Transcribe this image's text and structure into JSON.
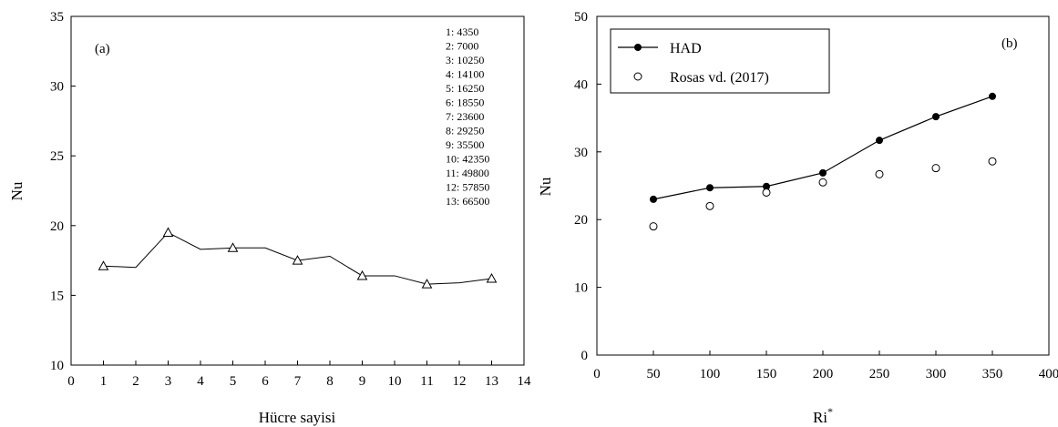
{
  "chart_data": [
    {
      "type": "line",
      "panel_label": "(a)",
      "xlabel": "Hücre sayisi",
      "ylabel": "Nu",
      "xlim": [
        0,
        14
      ],
      "ylim": [
        10,
        35
      ],
      "x_ticks": [
        0,
        1,
        2,
        3,
        4,
        5,
        6,
        7,
        8,
        9,
        10,
        11,
        12,
        13,
        14
      ],
      "y_ticks": [
        10,
        15,
        20,
        25,
        30,
        35
      ],
      "grid": false,
      "series": [
        {
          "x": [
            1,
            2,
            3,
            4,
            5,
            6,
            7,
            8,
            9,
            10,
            11,
            12,
            13
          ],
          "y": [
            17.1,
            17.0,
            19.5,
            18.3,
            18.4,
            18.4,
            17.5,
            17.8,
            16.4,
            16.4,
            15.8,
            15.9,
            16.2
          ],
          "marker": "triangle-open",
          "marker_on_x": [
            1,
            3,
            5,
            7,
            9,
            11,
            13
          ]
        }
      ],
      "annotations": [
        "1: 4350",
        "2: 7000",
        "3: 10250",
        "4: 14100",
        "5: 16250",
        "6: 18550",
        "7: 23600",
        "8: 29250",
        "9: 35500",
        "10: 42350",
        "11: 49800",
        "12: 57850",
        "13: 66500"
      ]
    },
    {
      "type": "line",
      "panel_label": "(b)",
      "xlabel": "Ri",
      "xlabel_superscript": "*",
      "ylabel": "Nu",
      "xlim": [
        0,
        400
      ],
      "ylim": [
        0,
        50
      ],
      "x_ticks": [
        0,
        50,
        100,
        150,
        200,
        250,
        300,
        350,
        400
      ],
      "y_ticks": [
        0,
        10,
        20,
        30,
        40,
        50
      ],
      "grid": false,
      "legend_position": "top-left",
      "series": [
        {
          "name": "HAD",
          "style": "line-filled-circle",
          "x": [
            50,
            100,
            150,
            200,
            250,
            300,
            350
          ],
          "y": [
            23.0,
            24.7,
            24.9,
            26.9,
            31.7,
            35.2,
            38.2
          ]
        },
        {
          "name": "Rosas vd. (2017)",
          "style": "open-circle",
          "x": [
            50,
            100,
            150,
            200,
            250,
            300,
            350
          ],
          "y": [
            19.0,
            22.0,
            24.0,
            25.5,
            26.7,
            27.6,
            28.6
          ]
        }
      ]
    }
  ]
}
